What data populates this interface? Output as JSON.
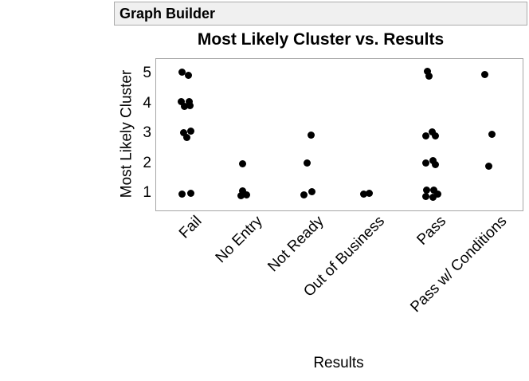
{
  "window": {
    "title": "Graph Builder"
  },
  "colors": {
    "point": "#000000",
    "plot_border": "#a6a6a6",
    "titlebar_bg": "#f0f0f0",
    "titlebar_border": "#ababab",
    "text": "#000000",
    "background": "#ffffff"
  },
  "chart_data": {
    "type": "scatter",
    "title": "Most Likely Cluster vs. Results",
    "xlabel": "Results",
    "ylabel": "Most Likely Cluster",
    "categories": [
      "Fail",
      "No Entry",
      "Not Ready",
      "Out of Business",
      "Pass",
      "Pass w/ Conditions"
    ],
    "yticks": [
      5,
      4,
      3,
      2,
      1
    ],
    "ylim": [
      0.5,
      5.5
    ],
    "grid": false,
    "legend_position": "none",
    "x_tick_rotation_deg": 45,
    "cluster_counts": {
      "Fail": {
        "5": 2,
        "4": 4,
        "3": 3,
        "1": 2
      },
      "No Entry": {
        "2": 1,
        "1": 3
      },
      "Not Ready": {
        "3": 1,
        "2": 1,
        "1": 2
      },
      "Out of Business": {
        "1": 2
      },
      "Pass": {
        "5": 2,
        "3": 3,
        "2": 3,
        "1": 5
      },
      "Pass w/ Conditions": {
        "5": 1,
        "3": 1,
        "2": 1
      }
    },
    "points": [
      {
        "category": "Fail",
        "value": 5,
        "jitter": [
          -6,
          -3
        ]
      },
      {
        "category": "Fail",
        "value": 5,
        "jitter": [
          2,
          1
        ]
      },
      {
        "category": "Fail",
        "value": 4,
        "jitter": [
          -7,
          -3
        ]
      },
      {
        "category": "Fail",
        "value": 4,
        "jitter": [
          3,
          -3
        ]
      },
      {
        "category": "Fail",
        "value": 4,
        "jitter": [
          -3,
          3
        ]
      },
      {
        "category": "Fail",
        "value": 4,
        "jitter": [
          4,
          2
        ]
      },
      {
        "category": "Fail",
        "value": 3,
        "jitter": [
          -4,
          -2
        ]
      },
      {
        "category": "Fail",
        "value": 3,
        "jitter": [
          5,
          -4
        ]
      },
      {
        "category": "Fail",
        "value": 3,
        "jitter": [
          0,
          4
        ]
      },
      {
        "category": "Fail",
        "value": 1,
        "jitter": [
          -6,
          0
        ]
      },
      {
        "category": "Fail",
        "value": 1,
        "jitter": [
          5,
          -1
        ]
      },
      {
        "category": "No Entry",
        "value": 2,
        "jitter": [
          -7,
          0
        ]
      },
      {
        "category": "No Entry",
        "value": 1,
        "jitter": [
          -7,
          -4
        ]
      },
      {
        "category": "No Entry",
        "value": 1,
        "jitter": [
          -2,
          1
        ]
      },
      {
        "category": "No Entry",
        "value": 1,
        "jitter": [
          -9,
          2
        ]
      },
      {
        "category": "Not Ready",
        "value": 3,
        "jitter": [
          3,
          1
        ]
      },
      {
        "category": "Not Ready",
        "value": 2,
        "jitter": [
          -2,
          -1
        ]
      },
      {
        "category": "Not Ready",
        "value": 1,
        "jitter": [
          -6,
          1
        ]
      },
      {
        "category": "Not Ready",
        "value": 1,
        "jitter": [
          4,
          -3
        ]
      },
      {
        "category": "Out of Business",
        "value": 1,
        "jitter": [
          -8,
          0
        ]
      },
      {
        "category": "Out of Business",
        "value": 1,
        "jitter": [
          -1,
          -1
        ]
      },
      {
        "category": "Pass",
        "value": 5,
        "jitter": [
          -5,
          -4
        ]
      },
      {
        "category": "Pass",
        "value": 5,
        "jitter": [
          -3,
          2
        ]
      },
      {
        "category": "Pass",
        "value": 3,
        "jitter": [
          -7,
          2
        ]
      },
      {
        "category": "Pass",
        "value": 3,
        "jitter": [
          1,
          -3
        ]
      },
      {
        "category": "Pass",
        "value": 3,
        "jitter": [
          5,
          2
        ]
      },
      {
        "category": "Pass",
        "value": 2,
        "jitter": [
          -7,
          -1
        ]
      },
      {
        "category": "Pass",
        "value": 2,
        "jitter": [
          2,
          -4
        ]
      },
      {
        "category": "Pass",
        "value": 2,
        "jitter": [
          5,
          1
        ]
      },
      {
        "category": "Pass",
        "value": 1,
        "jitter": [
          -6,
          -5
        ]
      },
      {
        "category": "Pass",
        "value": 1,
        "jitter": [
          3,
          -5
        ]
      },
      {
        "category": "Pass",
        "value": 1,
        "jitter": [
          -7,
          3
        ]
      },
      {
        "category": "Pass",
        "value": 1,
        "jitter": [
          2,
          4
        ]
      },
      {
        "category": "Pass",
        "value": 1,
        "jitter": [
          8,
          0
        ]
      },
      {
        "category": "Pass w/ Conditions",
        "value": 5,
        "jitter": [
          -9,
          0
        ]
      },
      {
        "category": "Pass w/ Conditions",
        "value": 3,
        "jitter": [
          0,
          0
        ]
      },
      {
        "category": "Pass w/ Conditions",
        "value": 2,
        "jitter": [
          -4,
          3
        ]
      }
    ]
  }
}
